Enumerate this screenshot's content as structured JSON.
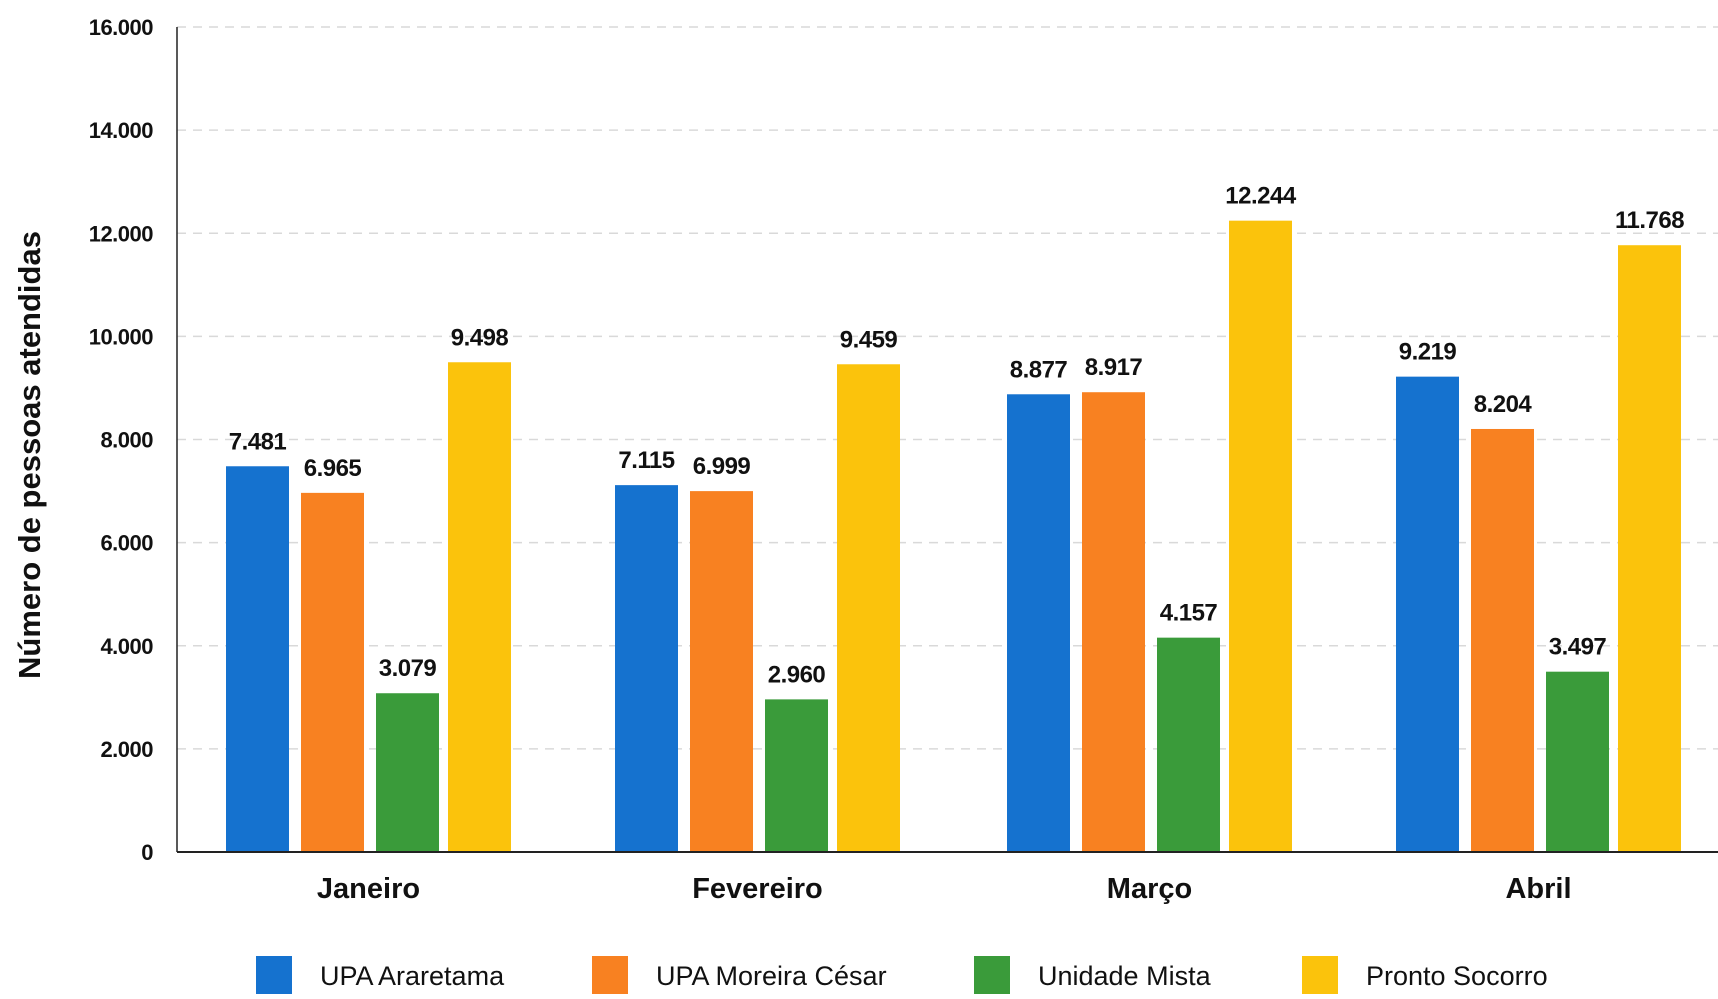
{
  "chart_data": {
    "type": "bar",
    "title": "",
    "xlabel": "",
    "ylabel": "Número de pessoas atendidas",
    "ylim": [
      0,
      16000
    ],
    "yticks": [
      0,
      2000,
      4000,
      6000,
      8000,
      10000,
      12000,
      14000,
      16000
    ],
    "ytick_labels": [
      "0",
      "2.000",
      "4.000",
      "6.000",
      "8.000",
      "10.000",
      "12.000",
      "14.000",
      "16.000"
    ],
    "grid": true,
    "legend_position": "bottom",
    "categories": [
      "Janeiro",
      "Fevereiro",
      "Março",
      "Abril"
    ],
    "series": [
      {
        "name": "UPA Araretama",
        "color": "#1572CF",
        "values": [
          7481,
          7115,
          8877,
          9219
        ],
        "labels": [
          "7.481",
          "7.115",
          "8.877",
          "9.219"
        ]
      },
      {
        "name": "UPA Moreira César",
        "color": "#F88121",
        "values": [
          6965,
          6999,
          8917,
          8204
        ],
        "labels": [
          "6.965",
          "6.999",
          "8.917",
          "8.204"
        ]
      },
      {
        "name": "Unidade Mista",
        "color": "#3A9B3A",
        "values": [
          3079,
          2960,
          4157,
          3497
        ],
        "labels": [
          "3.079",
          "2.960",
          "4.157",
          "3.497"
        ]
      },
      {
        "name": "Pronto Socorro",
        "color": "#FBC30C",
        "values": [
          9498,
          9459,
          12244,
          11768
        ],
        "labels": [
          "9.498",
          "9.459",
          "12.244",
          "11.768"
        ]
      }
    ]
  }
}
